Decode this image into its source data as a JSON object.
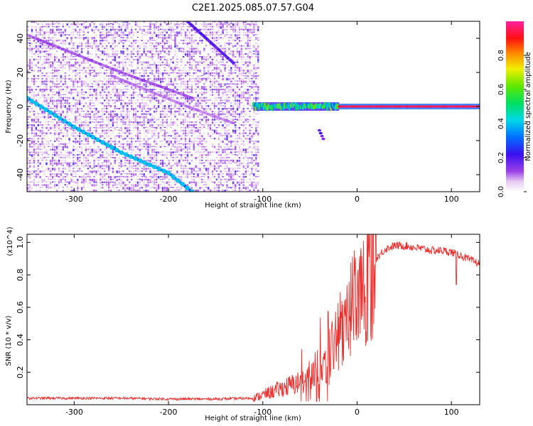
{
  "title": "C2E1.2025.085.07.57.G04",
  "chart_data": [
    {
      "type": "heatmap",
      "xlabel": "Height of straight line (km)",
      "ylabel": "Frequency (Hz)",
      "xlim": [
        -350,
        130
      ],
      "ylim": [
        -50,
        50
      ],
      "x_ticks": [
        -300,
        -200,
        -100,
        0,
        100
      ],
      "x_tick_labels": [
        "-300",
        "-200",
        "-100",
        "0",
        "100"
      ],
      "y_ticks": [
        -40,
        -20,
        0,
        20,
        40
      ],
      "y_tick_labels": [
        "-40",
        "-20",
        "0",
        "20",
        "40"
      ],
      "colorbar": {
        "label": "Normalized spectral amplitude",
        "range": [
          0,
          1
        ],
        "ticks": [
          0.0,
          0.2,
          0.4,
          0.6,
          0.8
        ],
        "tick_labels": [
          "0.0",
          "0.2",
          "0.4",
          "0.6",
          "0.8"
        ],
        "colormap": "rainbow (white-magenta-blue-cyan-green-yellow-red-magenta)"
      },
      "noise_region_x": [
        -350,
        -105
      ],
      "features": [
        {
          "name": "strong diagonal line",
          "points": [
            [
              -350,
              5
            ],
            [
              -300,
              -12
            ],
            [
              -250,
              -27
            ],
            [
              -200,
              -39
            ],
            [
              -175,
              -50
            ]
          ],
          "amplitude": 0.35
        },
        {
          "name": "upper diagonal line",
          "points": [
            [
              -180,
              50
            ],
            [
              -160,
              40
            ],
            [
              -130,
              25
            ]
          ],
          "amplitude": 0.2
        },
        {
          "name": "faint diagonal line 1",
          "points": [
            [
              -350,
              42
            ],
            [
              -250,
              20
            ],
            [
              -175,
              5
            ]
          ],
          "amplitude": 0.12
        },
        {
          "name": "faint diagonal line 2",
          "points": [
            [
              -260,
              18
            ],
            [
              -180,
              0
            ],
            [
              -130,
              -10
            ]
          ],
          "amplitude": 0.1
        },
        {
          "name": "carrier line",
          "points": [
            [
              -110,
              0
            ],
            [
              -50,
              0
            ],
            [
              0,
              0
            ],
            [
              130,
              0
            ]
          ],
          "amplitude": 0.95
        },
        {
          "name": "spur",
          "points": [
            [
              -40,
              -14
            ],
            [
              -35,
              -20
            ]
          ],
          "amplitude": 0.2
        }
      ]
    },
    {
      "type": "line",
      "xlabel": "Height of straight line (km)",
      "ylabel": "SNR (10 * v/v)",
      "y_multiplier": "(x10^4)",
      "xlim": [
        -350,
        130
      ],
      "ylim": [
        0,
        1.05
      ],
      "x_ticks": [
        -300,
        -200,
        -100,
        0,
        100
      ],
      "x_tick_labels": [
        "-300",
        "-200",
        "-100",
        "0",
        "100"
      ],
      "y_ticks": [
        0.2,
        0.4,
        0.6,
        0.8,
        1.0
      ],
      "y_tick_labels": [
        "0.2",
        "0.4",
        "0.6",
        "0.8",
        "1.0"
      ],
      "color": "#e8302e",
      "series": [
        {
          "x": [
            -350,
            -300,
            -250,
            -200,
            -150,
            -110,
            -100,
            -80,
            -60,
            -50,
            -40,
            -35,
            -30,
            -25,
            -20,
            -15,
            -10,
            -5,
            0,
            5,
            10,
            20,
            30,
            40,
            50,
            60,
            70,
            80,
            90,
            100,
            105,
            110,
            120,
            130
          ],
          "values": [
            0.04,
            0.04,
            0.04,
            0.035,
            0.035,
            0.04,
            0.06,
            0.1,
            0.14,
            0.18,
            0.2,
            0.25,
            0.3,
            0.38,
            0.45,
            0.5,
            0.55,
            0.6,
            0.65,
            0.72,
            0.8,
            0.9,
            0.96,
            0.98,
            0.98,
            0.97,
            0.96,
            0.95,
            0.95,
            0.94,
            0.93,
            0.92,
            0.89,
            0.87
          ]
        }
      ]
    }
  ]
}
